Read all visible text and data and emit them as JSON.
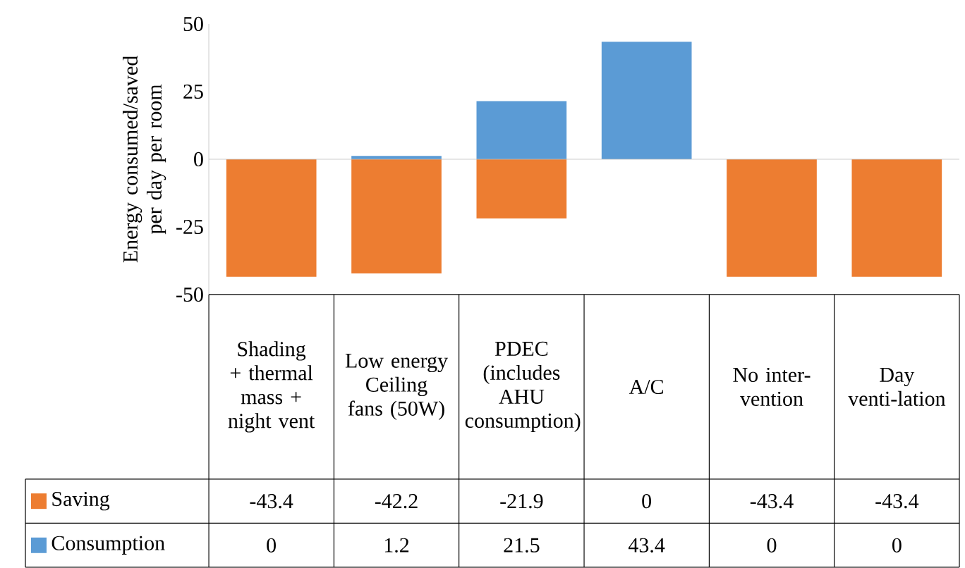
{
  "chart_data": {
    "type": "bar",
    "stacked": true,
    "ylabel": "Energy consumed/saved per day per room",
    "categories": [
      "Shading + thermal mass + night vent",
      "Low energy Ceiling fans (50W)",
      "PDEC (includes AHU consumption)",
      "A/C",
      "No inter-vention",
      "Day venti-lation"
    ],
    "series": [
      {
        "name": "Saving",
        "color": "#ed7d31",
        "values": [
          -43.4,
          -42.2,
          -21.9,
          0,
          -43.4,
          -43.4
        ]
      },
      {
        "name": "Consumption",
        "color": "#5b9bd5",
        "values": [
          0,
          1.2,
          21.5,
          43.4,
          0,
          0
        ]
      }
    ],
    "ylim": [
      -50,
      50
    ],
    "yticks": [
      -50,
      -25,
      0,
      25,
      50
    ],
    "data_labels": true,
    "legend": "bottom"
  }
}
